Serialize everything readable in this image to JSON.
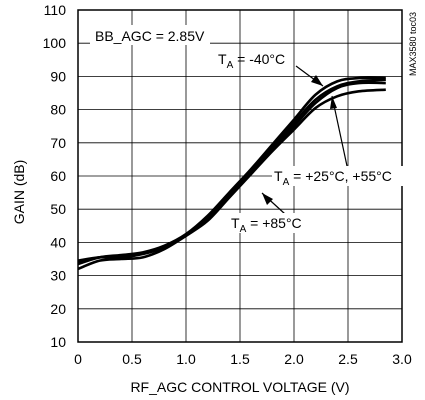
{
  "chart_data": {
    "type": "line",
    "xlabel": "RF_AGC CONTROL VOLTAGE (V)",
    "ylabel": "GAIN (dB)",
    "xlim": [
      0,
      3.0
    ],
    "ylim": [
      10,
      110
    ],
    "x_ticks": [
      0,
      0.5,
      1.0,
      1.5,
      2.0,
      2.5,
      3.0
    ],
    "x_tick_labels": [
      "0",
      "0.5",
      "1.0",
      "1.5",
      "2.0",
      "2.5",
      "3.0"
    ],
    "y_ticks": [
      10,
      20,
      30,
      40,
      50,
      60,
      70,
      80,
      90,
      100,
      110
    ],
    "y_tick_labels": [
      "10",
      "20",
      "30",
      "40",
      "50",
      "60",
      "70",
      "80",
      "90",
      "100",
      "110"
    ],
    "grid": true,
    "figure_id": "MAX3580 toc03",
    "condition_label": "BB_AGC = 2.85V",
    "annotations": [
      {
        "text": "T",
        "sub": "A",
        "rest": " = -40°C"
      },
      {
        "text": "T",
        "sub": "A",
        "rest": " = +25°C, +55°C"
      },
      {
        "text": "T",
        "sub": "A",
        "rest": " = +85°C"
      }
    ],
    "series": [
      {
        "x": [
          0,
          0.2,
          0.4,
          0.6,
          0.8,
          1.0,
          1.2,
          1.4,
          1.6,
          1.8,
          2.0,
          2.2,
          2.4,
          2.6,
          2.85
        ],
        "values": [
          33.5,
          35.5,
          36.2,
          37.0,
          39.0,
          42.5,
          48.0,
          55.0,
          62.0,
          69.5,
          77.0,
          84.5,
          88.5,
          89.5,
          89.5
        ]
      },
      {
        "x": [
          0,
          0.2,
          0.4,
          0.6,
          0.8,
          1.0,
          1.2,
          1.4,
          1.6,
          1.8,
          2.0,
          2.2,
          2.4,
          2.6,
          2.85
        ],
        "values": [
          34.0,
          35.5,
          36.0,
          36.8,
          38.8,
          42.3,
          47.6,
          54.5,
          61.5,
          68.8,
          76.0,
          83.0,
          87.0,
          88.5,
          89.0
        ]
      },
      {
        "x": [
          0,
          0.2,
          0.4,
          0.6,
          0.8,
          1.0,
          1.2,
          1.4,
          1.6,
          1.8,
          2.0,
          2.2,
          2.4,
          2.6,
          2.85
        ],
        "values": [
          34.5,
          35.5,
          35.5,
          36.5,
          38.5,
          42.0,
          47.0,
          54.0,
          61.0,
          68.0,
          75.0,
          82.0,
          86.5,
          88.0,
          88.0
        ]
      },
      {
        "x": [
          0,
          0.2,
          0.4,
          0.6,
          0.8,
          1.0,
          1.2,
          1.4,
          1.6,
          1.8,
          2.0,
          2.2,
          2.4,
          2.6,
          2.85
        ],
        "values": [
          32.0,
          34.5,
          35.0,
          35.5,
          38.0,
          42.0,
          46.5,
          53.5,
          60.5,
          67.5,
          74.0,
          80.5,
          84.0,
          85.5,
          86.0
        ]
      }
    ]
  }
}
